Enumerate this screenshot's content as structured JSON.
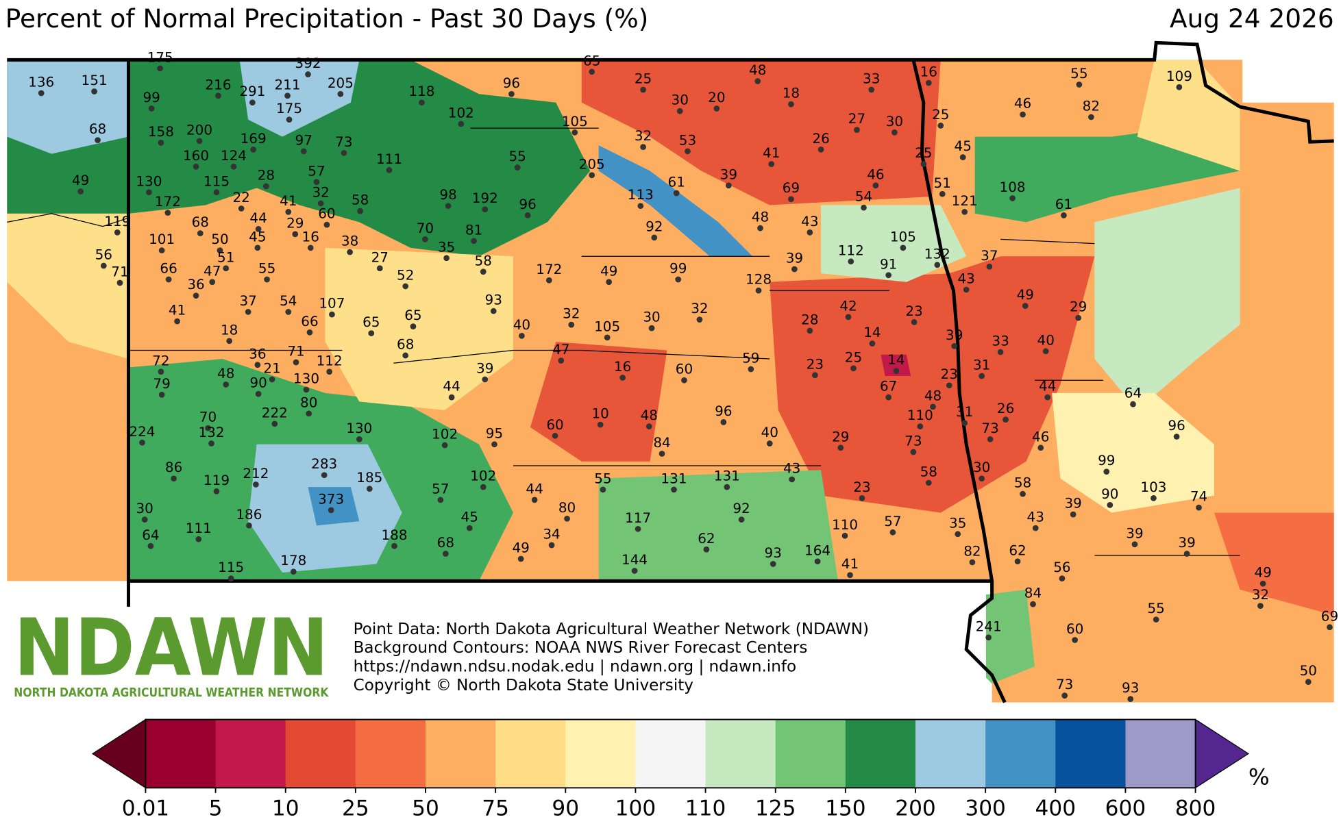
{
  "title": "Percent of Normal Precipitation - Past 30 Days (%)",
  "date": "Aug 24 2026",
  "stations": {
    "values": [
      175,
      392,
      65,
      136,
      151,
      99,
      216,
      291,
      211,
      205,
      118,
      96,
      25,
      48,
      33,
      16,
      55,
      109,
      175,
      102,
      30,
      20,
      18,
      105,
      27,
      30,
      25,
      46,
      82,
      68,
      158,
      200,
      169,
      97,
      73,
      32,
      53,
      26,
      45,
      160,
      124,
      111,
      55,
      205,
      41,
      25,
      57,
      49,
      130,
      115,
      28,
      61,
      39,
      46,
      51,
      108,
      32,
      98,
      192,
      96,
      113,
      69,
      54,
      121,
      61,
      22,
      172,
      68,
      44,
      41,
      60,
      58,
      119,
      101,
      50,
      45,
      29,
      16,
      38,
      70,
      81,
      92,
      48,
      43,
      105,
      35,
      27,
      58,
      112,
      91,
      132,
      37,
      56,
      51,
      66,
      47,
      55,
      71,
      52,
      172,
      49,
      99,
      128,
      39,
      43,
      36,
      49,
      29,
      54,
      107,
      37,
      93,
      41,
      42,
      23,
      32,
      66,
      65,
      65,
      32,
      105,
      30,
      28,
      14,
      39,
      33,
      40,
      40,
      18,
      68,
      36,
      71,
      47,
      112,
      59,
      23,
      25,
      14,
      31,
      72,
      21,
      16,
      60,
      23,
      39,
      48,
      130,
      90,
      79,
      44,
      44,
      67,
      48,
      64,
      80,
      222,
      96,
      110,
      31,
      26,
      70,
      10,
      48,
      60,
      130,
      132,
      224,
      102,
      95,
      40,
      29,
      73,
      96,
      46,
      73,
      84,
      99,
      86,
      283,
      43,
      58,
      30,
      212,
      119,
      185,
      102,
      55,
      131,
      131,
      58,
      23,
      103,
      90,
      74,
      44,
      57,
      373,
      39,
      80,
      30,
      186,
      45,
      92,
      117,
      43,
      110,
      57,
      35,
      111,
      188,
      64,
      34,
      62,
      68,
      39,
      39,
      49,
      164,
      93,
      82,
      62,
      178,
      144,
      41,
      56,
      115,
      49,
      32,
      84,
      55,
      69,
      241,
      60,
      50,
      73,
      93
    ]
  },
  "source_lines": [
    "Point Data: North Dakota Agricultural Weather Network (NDAWN)",
    "Background Contours: NOAA NWS River Forecast Centers",
    "https://ndawn.ndsu.nodak.edu | ndawn.org | ndawn.info",
    "Copyright © North Dakota State University"
  ],
  "logo": {
    "text": "NDAWN",
    "subtitle": "NORTH DAKOTA AGRICULTURAL WEATHER NETWORK"
  },
  "colorbar": {
    "ticks": [
      0.01,
      5,
      10,
      25,
      50,
      75,
      90,
      100,
      110,
      125,
      150,
      200,
      300,
      400,
      600,
      800
    ],
    "colors": [
      "#99002f",
      "#c3184a",
      "#e34a33",
      "#f46d43",
      "#fdae61",
      "#fedd86",
      "#fff1b0",
      "#f5f5f5",
      "#c7e9c0",
      "#74c476",
      "#238b45",
      "#9ecae1",
      "#4292c6",
      "#08519c",
      "#9e9ac8"
    ],
    "under_color": "#67001f",
    "over_color": "#54278f",
    "unit": "%"
  }
}
